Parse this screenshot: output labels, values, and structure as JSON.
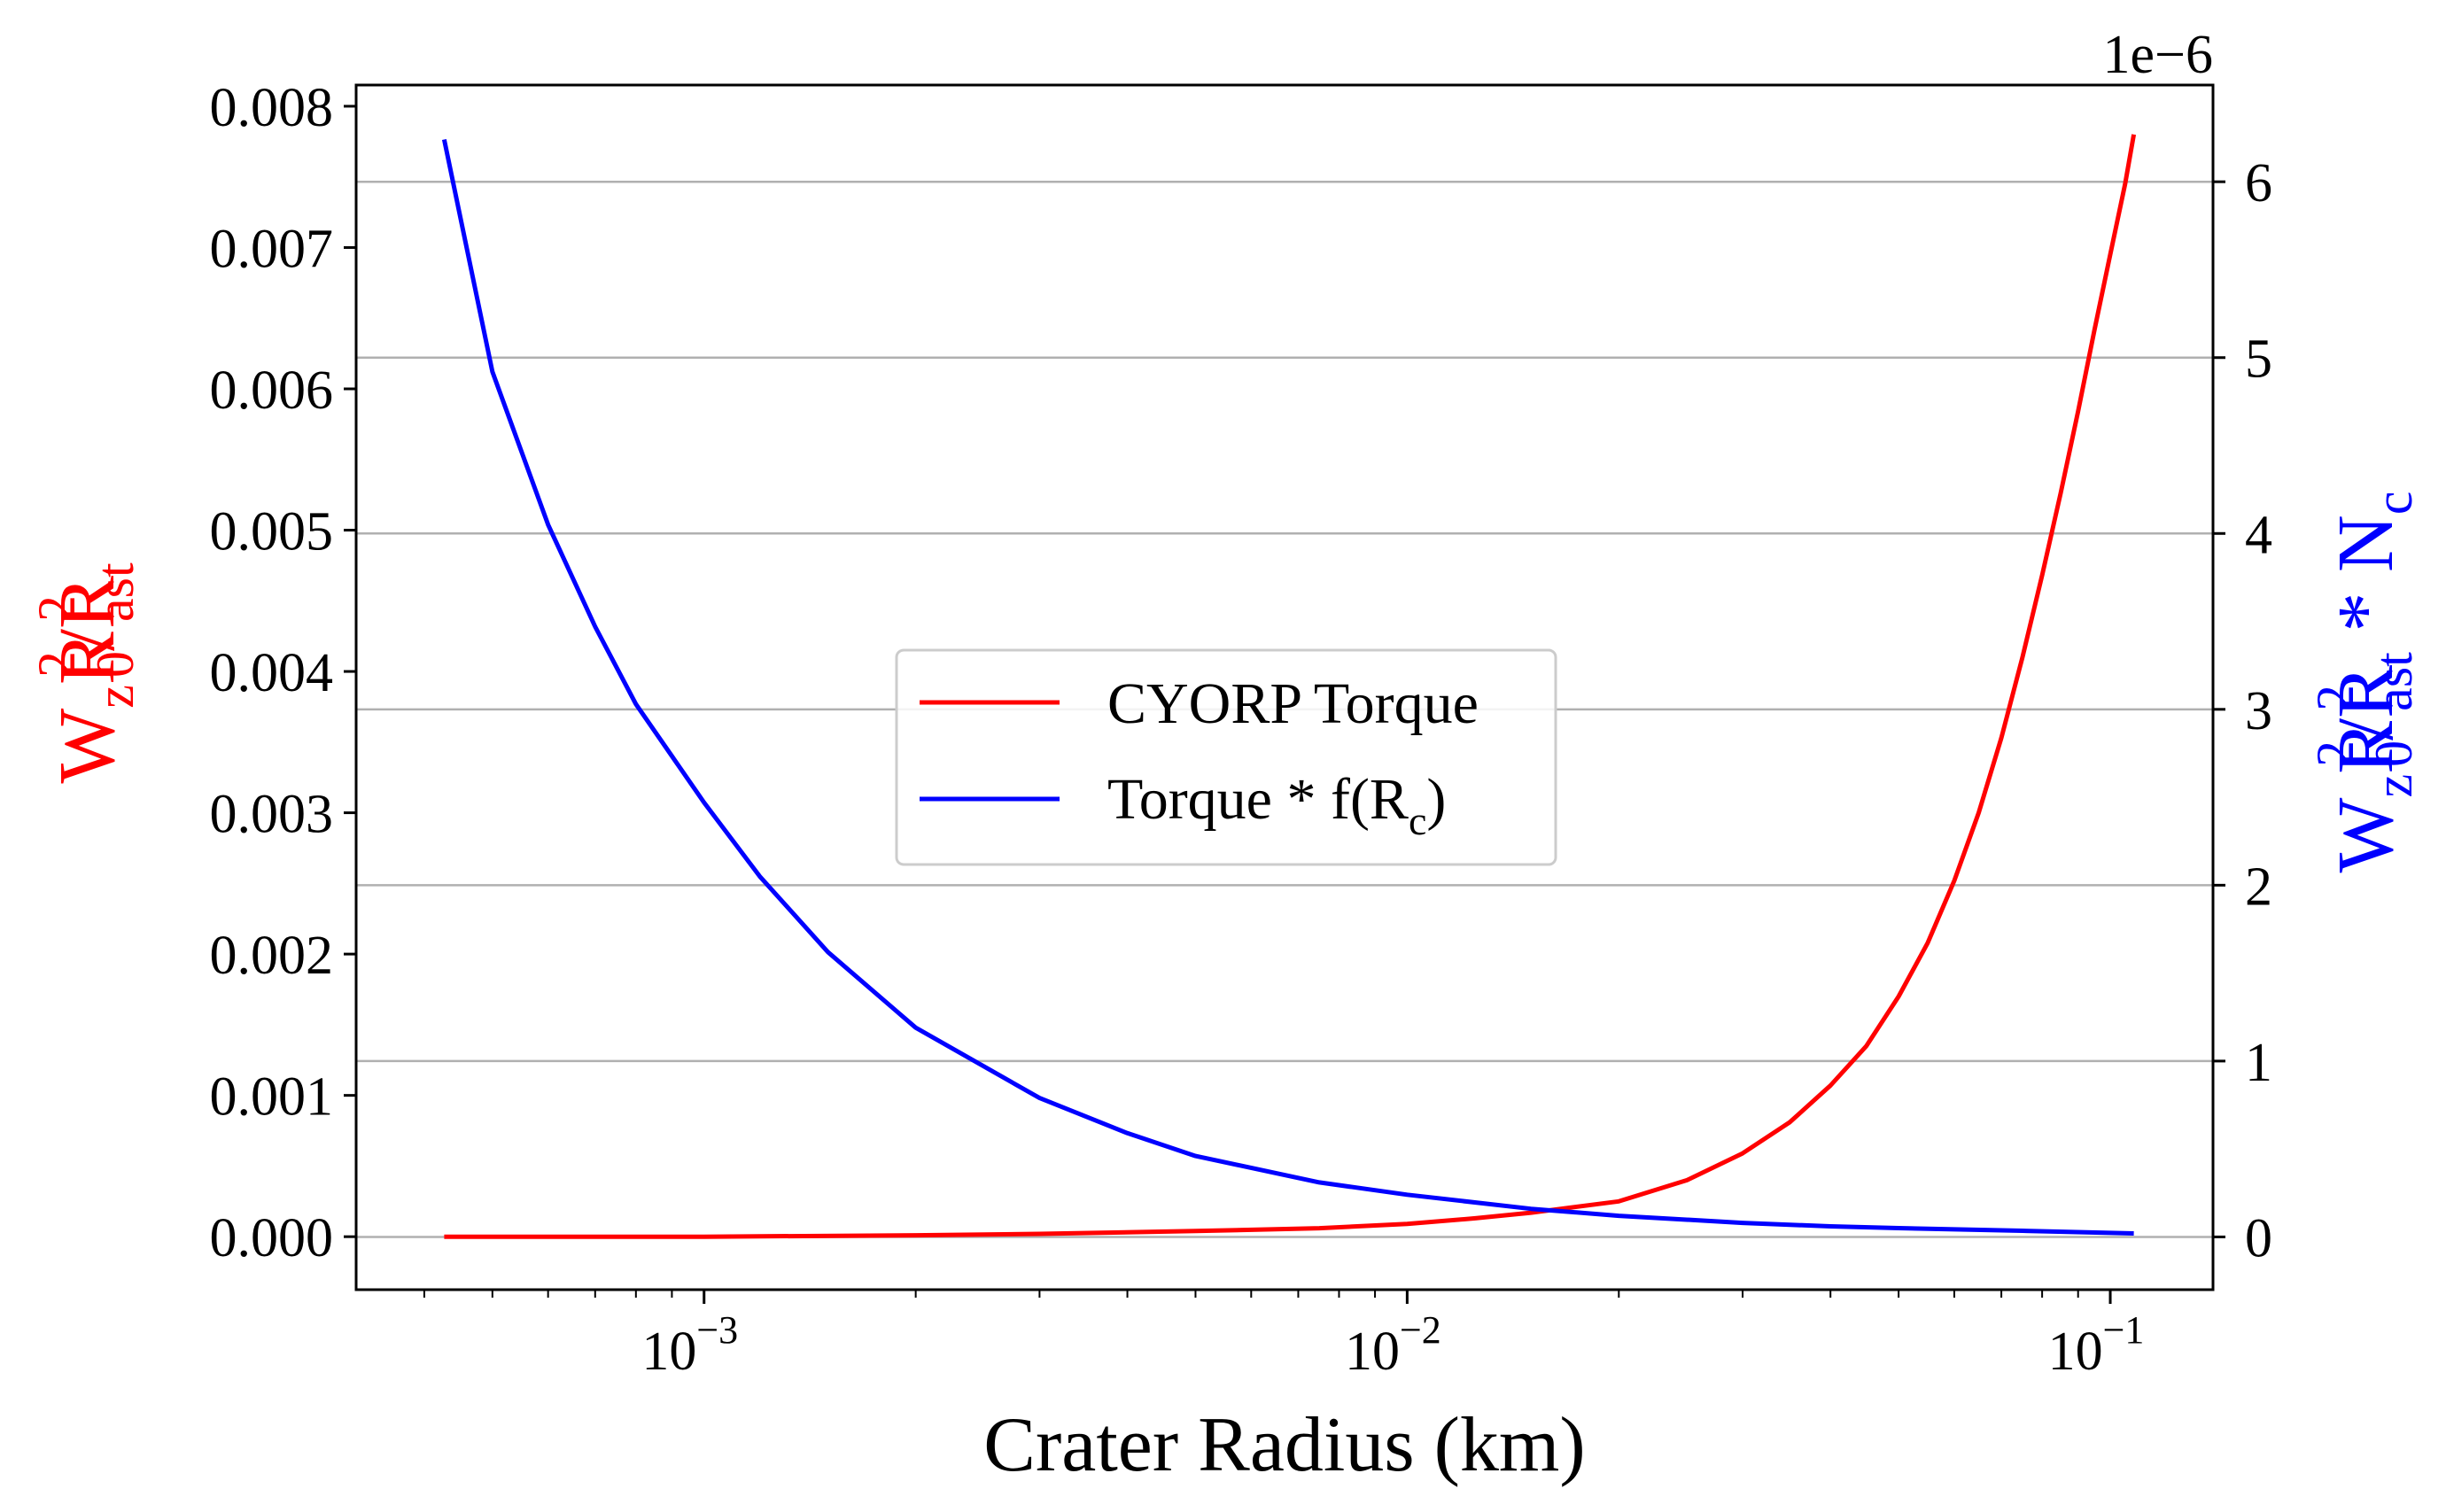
{
  "colors": {
    "left_axis": "#ff0000",
    "right_axis": "#0000ff",
    "grid": "#b0b0b0",
    "frame": "#000000"
  },
  "chart_data": {
    "type": "line",
    "xlabel": "Crater Radius (km)",
    "xscale": "log",
    "xlim": [
      0.00032,
      0.14
    ],
    "x_ticks": [
      {
        "base": "10",
        "exp": "−3",
        "value": 0.001
      },
      {
        "base": "10",
        "exp": "−2",
        "value": 0.01
      },
      {
        "base": "10",
        "exp": "−1",
        "value": 0.1
      }
    ],
    "ylabel_left": {
      "main": "W",
      "sub1": "z",
      "mid1": "R",
      "sup1": "2",
      "sub2": "0",
      "mid2": "/R",
      "sup2": "2",
      "sub3": "ast"
    },
    "ylabel_right": {
      "main": "W",
      "sub1": "z",
      "mid1": "R",
      "sup1": "2",
      "sub2": "0",
      "mid2": "/R",
      "sup2": "2",
      "sub3": "ast",
      "tail": " * N",
      "sub4": "c"
    },
    "ylim_left": [
      -0.000375,
      0.00815
    ],
    "ylim_right": [
      -0.3,
      6.55
    ],
    "ytick_labels_left": [
      "0.000",
      "0.001",
      "0.002",
      "0.003",
      "0.004",
      "0.005",
      "0.006",
      "0.007",
      "0.008"
    ],
    "ytick_labels_right": [
      "0",
      "1",
      "2",
      "3",
      "4",
      "5",
      "6"
    ],
    "right_offset_text": "1e−6",
    "grid": "horizontal (right axis)",
    "legend_position": "center",
    "legend": [
      {
        "name": "CYORP Torque",
        "color": "#ff0000"
      },
      {
        "name": "Torque * f(R",
        "sub": "c",
        "tail": ")",
        "color": "#0000ff"
      }
    ],
    "series": [
      {
        "name": "CYORP Torque",
        "axis": "left",
        "color": "#ff0000",
        "x": [
          0.000427,
          0.001,
          0.002,
          0.003,
          0.005,
          0.0075,
          0.01,
          0.0125,
          0.015,
          0.02,
          0.025,
          0.03,
          0.035,
          0.04,
          0.045,
          0.05,
          0.055,
          0.06,
          0.065,
          0.07,
          0.075,
          0.08,
          0.085,
          0.09,
          0.095,
          0.1,
          0.105,
          0.108
        ],
        "y": [
          0.0,
          0.0,
          1e-05,
          2e-05,
          4e-05,
          6e-05,
          9e-05,
          0.00013,
          0.00017,
          0.00025,
          0.0004,
          0.00059,
          0.00081,
          0.00107,
          0.00135,
          0.0017,
          0.00208,
          0.00252,
          0.003,
          0.00353,
          0.0041,
          0.00468,
          0.00526,
          0.00584,
          0.00642,
          0.00695,
          0.00745,
          0.0078
        ]
      },
      {
        "name": "Torque * f(Rc)",
        "axis": "right",
        "color": "#0000ff",
        "x": [
          0.000427,
          0.0005,
          0.0006,
          0.0007,
          0.0008,
          0.001,
          0.0012,
          0.0015,
          0.002,
          0.003,
          0.004,
          0.005,
          0.0075,
          0.01,
          0.015,
          0.02,
          0.03,
          0.04,
          0.05,
          0.075,
          0.108
        ],
        "y": [
          6.24,
          4.92,
          4.05,
          3.47,
          3.03,
          2.47,
          2.05,
          1.62,
          1.19,
          0.79,
          0.59,
          0.46,
          0.31,
          0.24,
          0.16,
          0.12,
          0.08,
          0.06,
          0.05,
          0.035,
          0.02
        ]
      }
    ]
  }
}
